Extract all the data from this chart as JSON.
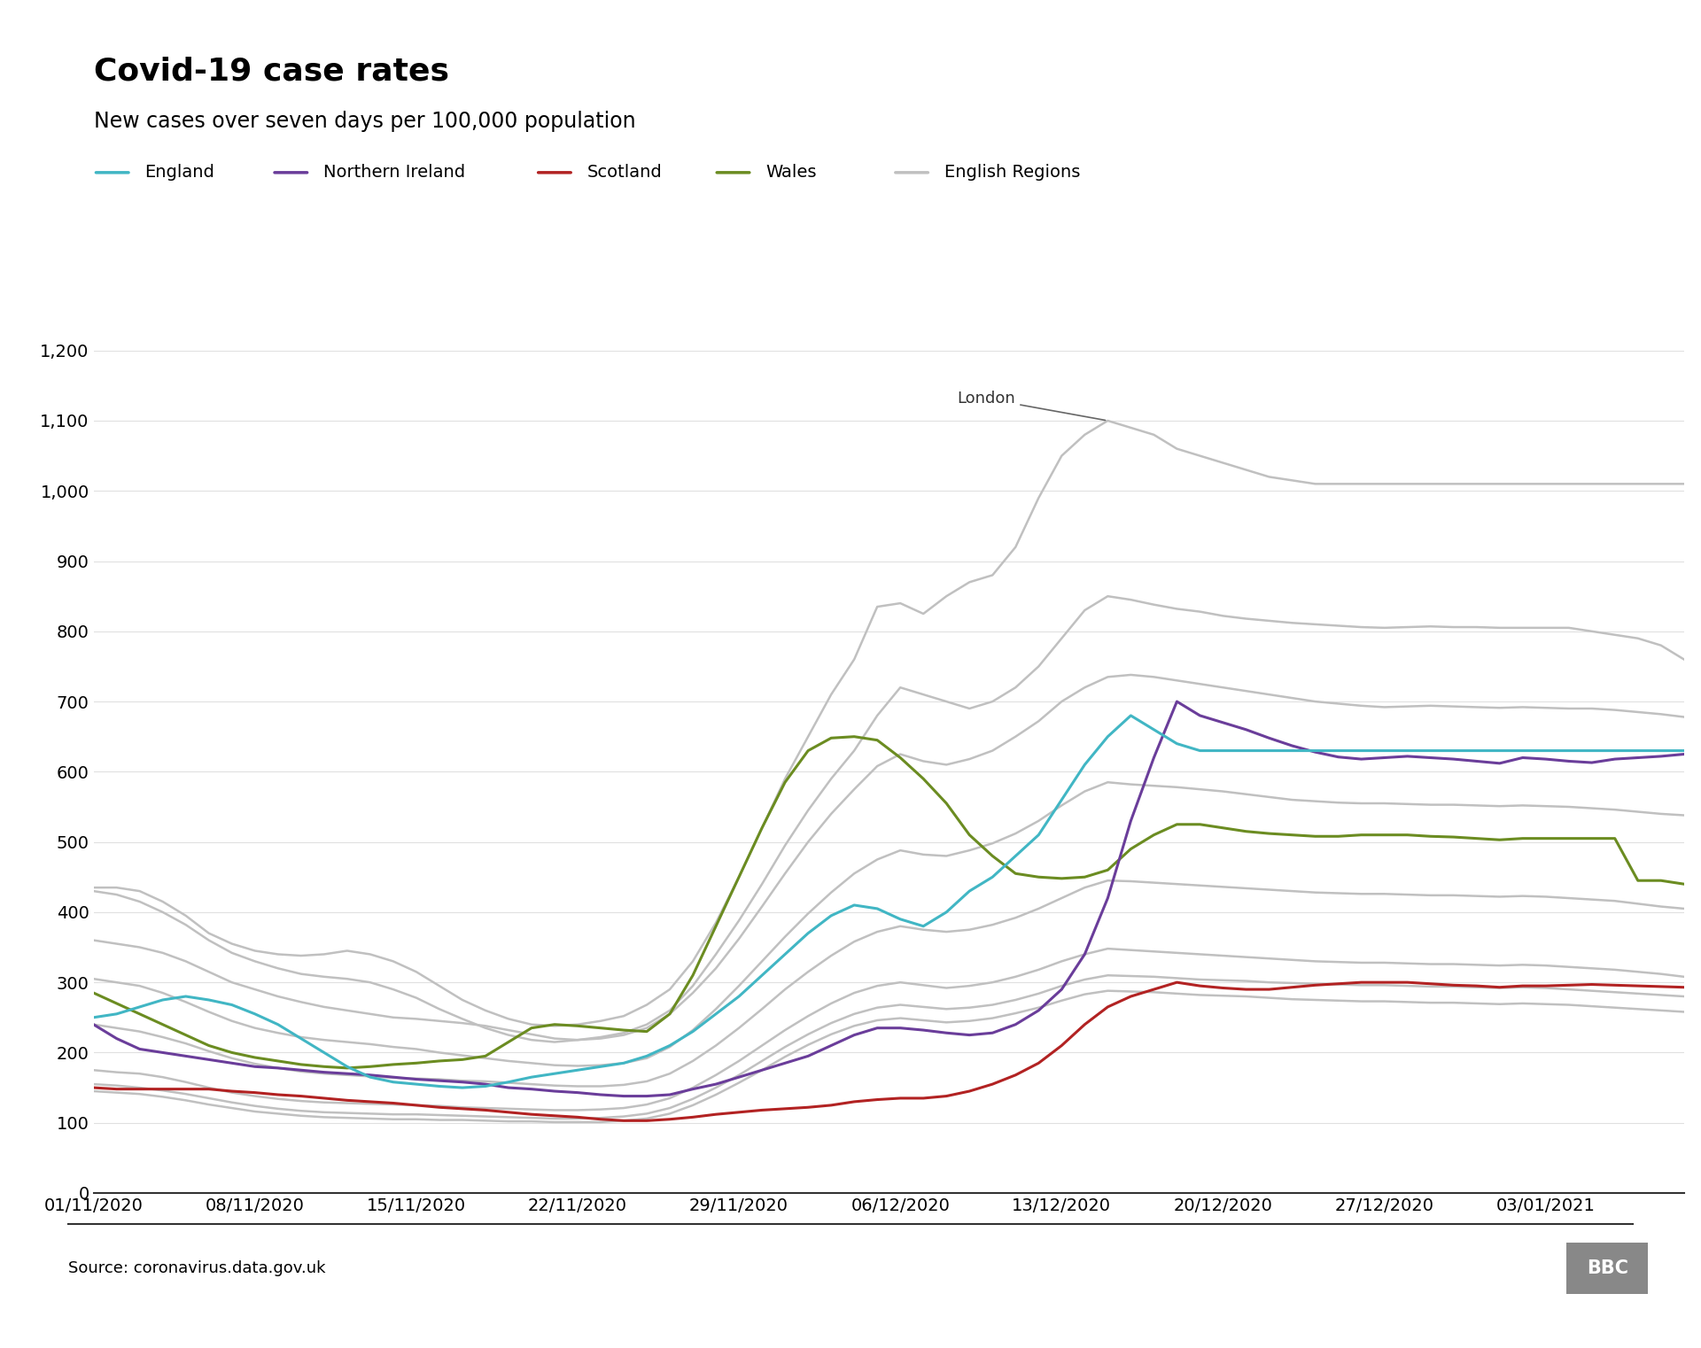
{
  "title": "Covid-19 case rates",
  "subtitle": "New cases over seven days per 100,000 population",
  "source": "Source: coronavirus.data.gov.uk",
  "colors": {
    "england": "#41b6c4",
    "northern_ireland": "#6a3d9a",
    "scotland": "#b22222",
    "wales": "#6b8c21",
    "english_regions": "#c0c0c0"
  },
  "ylim": [
    0,
    1200
  ],
  "ytick_vals": [
    0,
    100,
    200,
    300,
    400,
    500,
    600,
    700,
    800,
    900,
    1000,
    1100,
    1200
  ],
  "ytick_labels": [
    "0",
    "100",
    "200",
    "300",
    "400",
    "500",
    "600",
    "700",
    "800",
    "900",
    "1,000",
    "1,100",
    "1,200"
  ],
  "start_date": "2020-11-01",
  "end_date": "2021-01-09",
  "xtick_dates": [
    "2020-11-01",
    "2020-11-08",
    "2020-11-15",
    "2020-11-22",
    "2020-11-29",
    "2020-12-06",
    "2020-12-13",
    "2020-12-20",
    "2020-12-27",
    "2021-01-03"
  ],
  "england": [
    250,
    255,
    265,
    275,
    280,
    275,
    268,
    255,
    240,
    220,
    200,
    180,
    165,
    158,
    155,
    152,
    150,
    152,
    158,
    165,
    170,
    175,
    180,
    185,
    195,
    210,
    230,
    255,
    280,
    310,
    340,
    370,
    395,
    410,
    405,
    390,
    380,
    400,
    430,
    450,
    480,
    510,
    560,
    610,
    650,
    680,
    660,
    640,
    630,
    630,
    630,
    630,
    630,
    630,
    630,
    630,
    630,
    630,
    630,
    630,
    630,
    630,
    630,
    630,
    630,
    630,
    630,
    630,
    630,
    630
  ],
  "northern_ireland": [
    240,
    220,
    205,
    200,
    195,
    190,
    185,
    180,
    178,
    175,
    172,
    170,
    168,
    165,
    162,
    160,
    158,
    155,
    150,
    148,
    145,
    143,
    140,
    138,
    138,
    140,
    148,
    155,
    165,
    175,
    185,
    195,
    210,
    225,
    235,
    235,
    232,
    228,
    225,
    228,
    240,
    260,
    290,
    340,
    420,
    530,
    620,
    700,
    680,
    670,
    660,
    648,
    637,
    628,
    621,
    618,
    620,
    622,
    620,
    618,
    615,
    612,
    620,
    618,
    615,
    613,
    618,
    620,
    622,
    625
  ],
  "scotland": [
    150,
    148,
    148,
    148,
    148,
    148,
    145,
    143,
    140,
    138,
    135,
    132,
    130,
    128,
    125,
    122,
    120,
    118,
    115,
    112,
    110,
    108,
    105,
    103,
    103,
    105,
    108,
    112,
    115,
    118,
    120,
    122,
    125,
    130,
    133,
    135,
    135,
    138,
    145,
    155,
    168,
    185,
    210,
    240,
    265,
    280,
    290,
    300,
    295,
    292,
    290,
    290,
    293,
    296,
    298,
    300,
    300,
    300,
    298,
    296,
    295,
    293,
    295,
    295,
    296,
    297,
    296,
    295,
    294,
    293
  ],
  "wales": [
    285,
    270,
    255,
    240,
    225,
    210,
    200,
    193,
    188,
    183,
    180,
    178,
    180,
    183,
    185,
    188,
    190,
    195,
    215,
    235,
    240,
    238,
    235,
    232,
    230,
    255,
    310,
    380,
    450,
    520,
    585,
    630,
    648,
    650,
    645,
    620,
    590,
    555,
    510,
    480,
    455,
    450,
    448,
    450,
    460,
    490,
    510,
    525,
    525,
    520,
    515,
    512,
    510,
    508,
    508,
    510,
    510,
    510,
    508,
    507,
    505,
    503,
    505,
    505,
    505,
    505,
    505,
    445,
    445,
    440
  ],
  "london": [
    435,
    435,
    430,
    415,
    395,
    370,
    355,
    345,
    340,
    338,
    340,
    345,
    340,
    330,
    315,
    295,
    275,
    260,
    248,
    240,
    238,
    240,
    245,
    252,
    268,
    290,
    330,
    385,
    450,
    520,
    590,
    650,
    710,
    760,
    835,
    840,
    825,
    850,
    870,
    880,
    920,
    990,
    1050,
    1080,
    1100,
    1090,
    1080,
    1060,
    1050,
    1040,
    1030,
    1020,
    1015,
    1010,
    1010,
    1010,
    1010,
    1010,
    1010,
    1010,
    1010,
    1010,
    1010,
    1010,
    1010,
    1010,
    1010,
    1010,
    1010,
    1010
  ],
  "region2": [
    430,
    425,
    415,
    400,
    382,
    360,
    342,
    330,
    320,
    312,
    308,
    305,
    300,
    290,
    278,
    262,
    248,
    235,
    225,
    218,
    215,
    218,
    222,
    228,
    240,
    260,
    295,
    340,
    388,
    440,
    495,
    545,
    590,
    630,
    680,
    720,
    710,
    700,
    690,
    700,
    720,
    750,
    790,
    830,
    850,
    845,
    838,
    832,
    828,
    822,
    818,
    815,
    812,
    810,
    808,
    806,
    805,
    806,
    807,
    806,
    806,
    805,
    805,
    805,
    805,
    800,
    795,
    790,
    780,
    760
  ],
  "region3": [
    360,
    355,
    350,
    342,
    330,
    315,
    300,
    290,
    280,
    272,
    265,
    260,
    255,
    250,
    248,
    245,
    242,
    238,
    232,
    226,
    220,
    218,
    220,
    225,
    235,
    255,
    285,
    320,
    362,
    408,
    455,
    500,
    540,
    575,
    608,
    625,
    615,
    610,
    618,
    630,
    650,
    672,
    700,
    720,
    735,
    738,
    735,
    730,
    725,
    720,
    715,
    710,
    705,
    700,
    697,
    694,
    692,
    693,
    694,
    693,
    692,
    691,
    692,
    691,
    690,
    690,
    688,
    685,
    682,
    678
  ],
  "region4": [
    305,
    300,
    295,
    285,
    272,
    258,
    245,
    235,
    228,
    222,
    218,
    215,
    212,
    208,
    205,
    200,
    196,
    192,
    188,
    185,
    182,
    181,
    182,
    185,
    192,
    208,
    232,
    262,
    295,
    330,
    365,
    398,
    428,
    455,
    475,
    488,
    482,
    480,
    488,
    498,
    512,
    530,
    552,
    572,
    585,
    582,
    580,
    578,
    575,
    572,
    568,
    564,
    560,
    558,
    556,
    555,
    555,
    554,
    553,
    553,
    552,
    551,
    552,
    551,
    550,
    548,
    546,
    543,
    540,
    538
  ],
  "region5": [
    240,
    235,
    230,
    222,
    213,
    202,
    192,
    184,
    178,
    173,
    170,
    168,
    166,
    164,
    163,
    162,
    160,
    159,
    157,
    155,
    153,
    152,
    152,
    154,
    159,
    170,
    188,
    210,
    235,
    262,
    290,
    315,
    338,
    358,
    372,
    380,
    375,
    372,
    375,
    382,
    392,
    405,
    420,
    435,
    445,
    444,
    442,
    440,
    438,
    436,
    434,
    432,
    430,
    428,
    427,
    426,
    426,
    425,
    424,
    424,
    423,
    422,
    423,
    422,
    420,
    418,
    416,
    412,
    408,
    405
  ],
  "region6": [
    175,
    172,
    170,
    165,
    158,
    150,
    143,
    138,
    134,
    131,
    129,
    128,
    127,
    126,
    125,
    124,
    122,
    121,
    120,
    119,
    118,
    118,
    119,
    121,
    126,
    135,
    150,
    168,
    188,
    210,
    232,
    252,
    270,
    285,
    295,
    300,
    296,
    292,
    295,
    300,
    308,
    318,
    330,
    340,
    348,
    346,
    344,
    342,
    340,
    338,
    336,
    334,
    332,
    330,
    329,
    328,
    328,
    327,
    326,
    326,
    325,
    324,
    325,
    324,
    322,
    320,
    318,
    315,
    312,
    308
  ],
  "region7": [
    155,
    153,
    150,
    146,
    141,
    135,
    129,
    124,
    120,
    117,
    115,
    114,
    113,
    112,
    112,
    111,
    110,
    109,
    108,
    107,
    106,
    106,
    107,
    109,
    113,
    121,
    134,
    150,
    168,
    188,
    208,
    226,
    242,
    255,
    264,
    268,
    265,
    262,
    264,
    268,
    275,
    284,
    295,
    304,
    310,
    309,
    308,
    306,
    304,
    303,
    302,
    300,
    299,
    298,
    297,
    296,
    296,
    295,
    294,
    294,
    293,
    292,
    293,
    292,
    290,
    288,
    286,
    284,
    282,
    280
  ],
  "region8": [
    145,
    143,
    141,
    137,
    132,
    126,
    121,
    116,
    113,
    110,
    108,
    107,
    106,
    105,
    105,
    104,
    104,
    103,
    102,
    102,
    101,
    101,
    101,
    103,
    106,
    113,
    125,
    140,
    157,
    175,
    194,
    211,
    226,
    238,
    246,
    249,
    246,
    243,
    245,
    249,
    256,
    264,
    274,
    283,
    288,
    287,
    286,
    284,
    282,
    281,
    280,
    278,
    276,
    275,
    274,
    273,
    273,
    272,
    271,
    271,
    270,
    269,
    270,
    269,
    268,
    266,
    264,
    262,
    260,
    258
  ]
}
